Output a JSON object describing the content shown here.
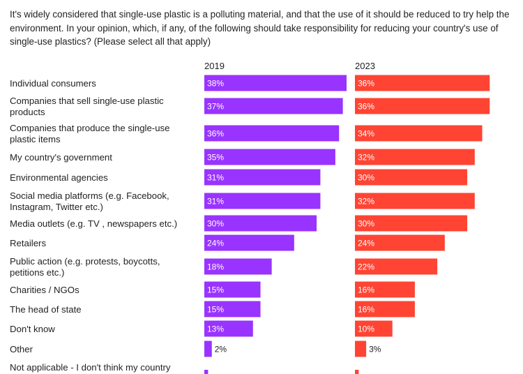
{
  "question": "It's widely considered that single-use plastic is a polluting material, and that the use of it should be reduced to try help the environment. In your opinion, which, if any, of the following should take responsibility for reducing your country's use of single-use plastics? (Please select all that apply)",
  "chart_data": {
    "type": "bar",
    "orientation": "horizontal",
    "categories": [
      [
        "Individual consumers"
      ],
      [
        "Companies that sell single-use plastic",
        "products"
      ],
      [
        "Companies that produce the single-use",
        "plastic items"
      ],
      [
        "My country's government"
      ],
      [
        "Environmental agencies"
      ],
      [
        "Social media platforms (e.g. Facebook,",
        "Instagram, Twitter etc.)"
      ],
      [
        "Media outlets (e.g. TV , newspapers etc.)"
      ],
      [
        "Retailers"
      ],
      [
        "Public action (e.g. protests, boycotts,",
        "petitions etc.)"
      ],
      [
        "Charities / NGOs"
      ],
      [
        "The head of state"
      ],
      [
        "Don't know"
      ],
      [
        "Other"
      ],
      [
        "Not applicable - I don't think my country"
      ]
    ],
    "series": [
      {
        "name": "2019",
        "color": "#9933ff",
        "values": [
          38,
          37,
          36,
          35,
          31,
          31,
          30,
          24,
          18,
          15,
          15,
          13,
          2,
          1
        ],
        "labels": [
          "38%",
          "37%",
          "36%",
          "35%",
          "31%",
          "31%",
          "30%",
          "24%",
          "18%",
          "15%",
          "15%",
          "13%",
          "2%",
          ""
        ]
      },
      {
        "name": "2023",
        "color": "#ff4433",
        "values": [
          36,
          36,
          34,
          32,
          30,
          32,
          30,
          24,
          22,
          16,
          16,
          10,
          3,
          1
        ],
        "labels": [
          "36%",
          "36%",
          "34%",
          "32%",
          "30%",
          "32%",
          "30%",
          "24%",
          "22%",
          "16%",
          "16%",
          "10%",
          "3%",
          ""
        ]
      }
    ],
    "value_unit": "%",
    "xlim": [
      0,
      38
    ],
    "legend": "panel titles above each series"
  }
}
